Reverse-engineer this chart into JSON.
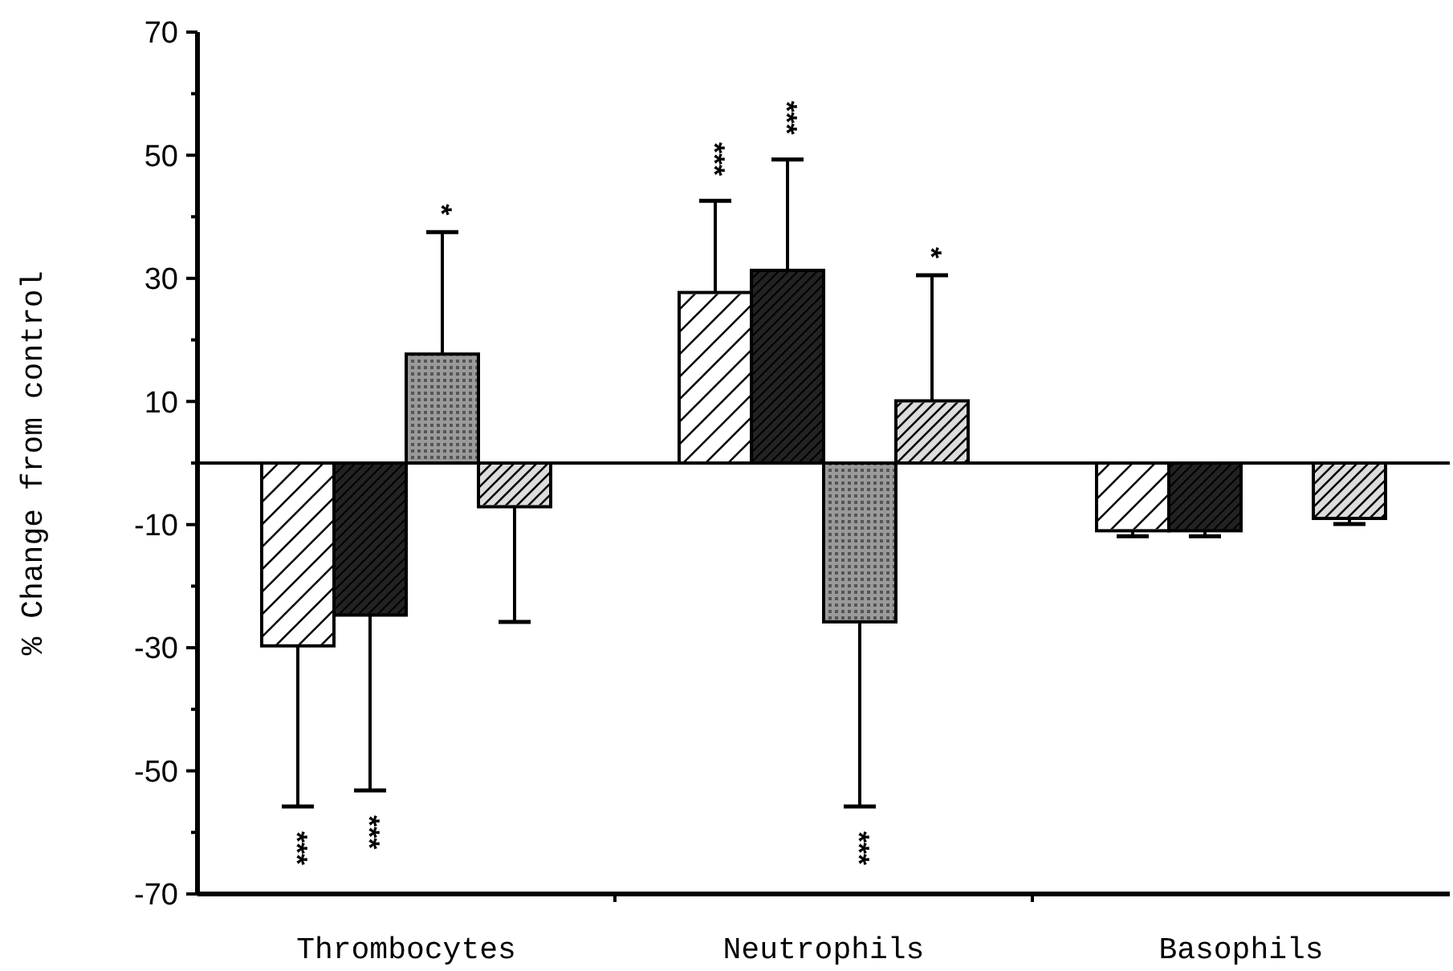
{
  "chart_data": {
    "type": "bar",
    "ylabel": "% Change from control",
    "categories": [
      "Thrombocytes",
      "Neutrophils",
      "Basophils"
    ],
    "series": [
      {
        "color": "#ffffff",
        "values": [
          -29.7,
          27.7,
          -11.0
        ],
        "errors": [
          [
            -55.8,
            -29.7
          ],
          [
            27.7,
            42.6
          ],
          [
            -11.9,
            -11.0
          ]
        ]
      },
      {
        "color": "#222222",
        "values": [
          -24.7,
          31.3,
          -11.0
        ],
        "errors": [
          [
            -53.2,
            -24.7
          ],
          [
            31.3,
            49.3
          ],
          [
            -11.9,
            -11.0
          ]
        ]
      },
      {
        "color": "#9a9a9a",
        "values": [
          17.7,
          -25.8,
          null
        ],
        "errors": [
          [
            17.7,
            37.5
          ],
          [
            -55.8,
            -25.8
          ],
          null
        ]
      },
      {
        "color": "#dddddd",
        "values": [
          -7.1,
          10.1,
          -9.0
        ],
        "errors": [
          [
            -25.8,
            -7.1
          ],
          [
            10.1,
            30.5
          ],
          [
            -9.9,
            -9.0
          ]
        ]
      }
    ],
    "ylim": [
      -70,
      70
    ],
    "yticks": [
      -70,
      {
        "value": -60,
        "label": null
      },
      -50,
      {
        "value": -40,
        "label": null
      },
      -30,
      {
        "value": -20,
        "label": null
      },
      -10,
      {
        "value": 0,
        "label": null
      },
      10,
      {
        "value": 20,
        "label": null
      },
      30,
      {
        "value": 40,
        "label": null
      },
      50,
      {
        "value": 60,
        "label": null
      },
      70
    ],
    "ref_lines": [
      {
        "axis": "y",
        "value": 0
      }
    ],
    "annotations": [
      "***",
      "***",
      "*",
      "***",
      "***",
      "*",
      "***"
    ],
    "grid": false
  }
}
